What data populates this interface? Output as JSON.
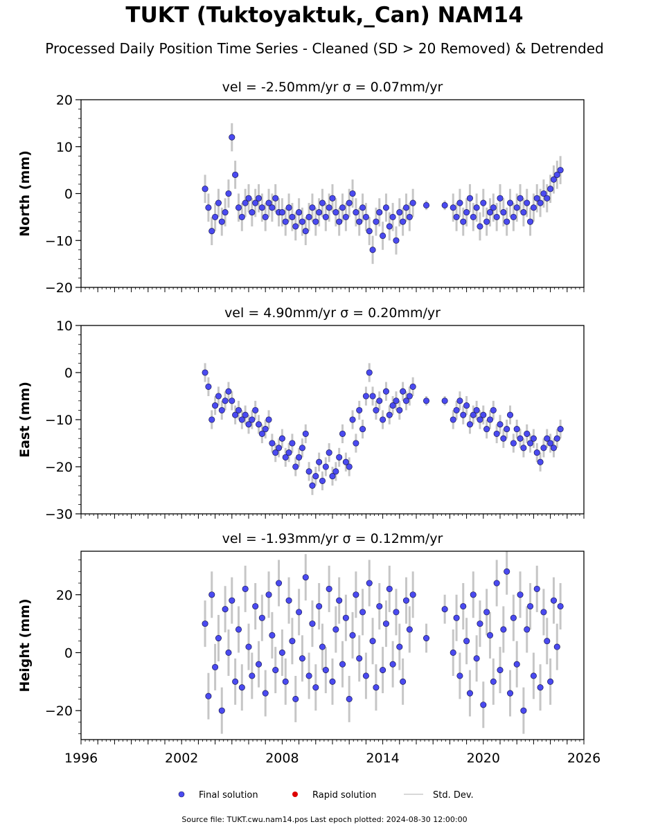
{
  "header": {
    "title": "TUKT (Tuktoyaktuk,_Can) NAM14",
    "subtitle": "Processed Daily Position Time Series - Cleaned (SD > 20 Removed) & Detrended"
  },
  "legend": {
    "final": "Final solution",
    "rapid": "Rapid solution",
    "stddev": "Std. Dev."
  },
  "footer": {
    "text": "Source file: TUKT.cwu.nam14.pos  Last epoch plotted: 2024-08-30 12:00:00"
  },
  "colors": {
    "final": "#4a4af0",
    "final_edge": "#1a1a55",
    "rapid": "#dd0000",
    "stddev": "#808080"
  },
  "chart_data": [
    {
      "type": "scatter",
      "title": "vel = -2.50mm/yr   σ = 0.07mm/yr",
      "ylabel": "North (mm)",
      "xlim": [
        1996,
        2026
      ],
      "ylim": [
        -20,
        20
      ],
      "yticks": [
        -20,
        -10,
        0,
        10,
        20
      ],
      "xticks": [
        1996,
        2002,
        2008,
        2014,
        2020,
        2026
      ],
      "show_xticklabels": false,
      "series": [
        {
          "name": "Final solution",
          "x": [
            2003.4,
            2003.6,
            2003.8,
            2004.0,
            2004.2,
            2004.4,
            2004.6,
            2004.8,
            2005.0,
            2005.2,
            2005.4,
            2005.6,
            2005.8,
            2006.0,
            2006.2,
            2006.4,
            2006.6,
            2006.8,
            2007.0,
            2007.2,
            2007.4,
            2007.6,
            2007.8,
            2008.0,
            2008.2,
            2008.4,
            2008.6,
            2008.8,
            2009.0,
            2009.2,
            2009.4,
            2009.6,
            2009.8,
            2010.0,
            2010.2,
            2010.4,
            2010.6,
            2010.8,
            2011.0,
            2011.2,
            2011.4,
            2011.6,
            2011.8,
            2012.0,
            2012.2,
            2012.4,
            2012.6,
            2012.8,
            2013.0,
            2013.2,
            2013.4,
            2013.6,
            2013.8,
            2014.0,
            2014.2,
            2014.4,
            2014.6,
            2014.8,
            2015.0,
            2015.2,
            2015.4,
            2015.6,
            2015.8,
            2016.6,
            2017.7,
            2018.2,
            2018.4,
            2018.6,
            2018.8,
            2019.0,
            2019.2,
            2019.4,
            2019.6,
            2019.8,
            2020.0,
            2020.2,
            2020.4,
            2020.6,
            2020.8,
            2021.0,
            2021.2,
            2021.4,
            2021.6,
            2021.8,
            2022.0,
            2022.2,
            2022.4,
            2022.6,
            2022.8,
            2023.0,
            2023.2,
            2023.4,
            2023.6,
            2023.8,
            2024.0,
            2024.2,
            2024.4,
            2024.6
          ],
          "y": [
            1,
            -3,
            -8,
            -5,
            -2,
            -6,
            -4,
            0,
            12,
            4,
            -3,
            -5,
            -2,
            -1,
            -4,
            -2,
            -1,
            -3,
            -5,
            -2,
            -3,
            -1,
            -4,
            -4,
            -6,
            -3,
            -5,
            -7,
            -4,
            -6,
            -8,
            -5,
            -3,
            -6,
            -4,
            -2,
            -5,
            -3,
            -1,
            -4,
            -6,
            -3,
            -5,
            -2,
            0,
            -4,
            -6,
            -3,
            -5,
            -8,
            -12,
            -6,
            -4,
            -9,
            -3,
            -7,
            -5,
            -10,
            -4,
            -6,
            -3,
            -5,
            -2,
            -2.5,
            -2.5,
            -3,
            -5,
            -2,
            -6,
            -4,
            -1,
            -5,
            -3,
            -7,
            -2,
            -6,
            -4,
            -3,
            -5,
            -1,
            -4,
            -6,
            -2,
            -5,
            -3,
            -1,
            -4,
            -2,
            -6,
            -3,
            -1,
            -2,
            0,
            -1,
            1,
            3,
            4,
            5
          ],
          "yerr": [
            3,
            3,
            3,
            3,
            3,
            3,
            3,
            3,
            3,
            3,
            3,
            3,
            3,
            3,
            3,
            3,
            3,
            3,
            3,
            3,
            3,
            3,
            3,
            3,
            3,
            3,
            3,
            3,
            3,
            3,
            3,
            3,
            3,
            3,
            3,
            3,
            3,
            3,
            3,
            3,
            3,
            3,
            3,
            3,
            3,
            3,
            3,
            3,
            3,
            3,
            3,
            3,
            3,
            3,
            3,
            3,
            3,
            3,
            3,
            3,
            3,
            3,
            3,
            1,
            1,
            3,
            3,
            3,
            3,
            3,
            3,
            3,
            3,
            3,
            3,
            3,
            3,
            3,
            3,
            3,
            3,
            3,
            3,
            3,
            3,
            3,
            3,
            3,
            3,
            3,
            3,
            3,
            3,
            3,
            3,
            3,
            3,
            3
          ]
        }
      ]
    },
    {
      "type": "scatter",
      "title": "vel = 4.90mm/yr   σ = 0.20mm/yr",
      "ylabel": "East (mm)",
      "xlim": [
        1996,
        2026
      ],
      "ylim": [
        -30,
        10
      ],
      "yticks": [
        -30,
        -20,
        -10,
        0,
        10
      ],
      "xticks": [
        1996,
        2002,
        2008,
        2014,
        2020,
        2026
      ],
      "show_xticklabels": false,
      "series": [
        {
          "name": "Final solution",
          "x": [
            2003.4,
            2003.6,
            2003.8,
            2004.0,
            2004.2,
            2004.4,
            2004.6,
            2004.8,
            2005.0,
            2005.2,
            2005.4,
            2005.6,
            2005.8,
            2006.0,
            2006.2,
            2006.4,
            2006.6,
            2006.8,
            2007.0,
            2007.2,
            2007.4,
            2007.6,
            2007.8,
            2008.0,
            2008.2,
            2008.4,
            2008.6,
            2008.8,
            2009.0,
            2009.2,
            2009.4,
            2009.6,
            2009.8,
            2010.0,
            2010.2,
            2010.4,
            2010.6,
            2010.8,
            2011.0,
            2011.2,
            2011.4,
            2011.6,
            2011.8,
            2012.0,
            2012.2,
            2012.4,
            2012.6,
            2012.8,
            2013.0,
            2013.2,
            2013.4,
            2013.6,
            2013.8,
            2014.0,
            2014.2,
            2014.4,
            2014.6,
            2014.8,
            2015.0,
            2015.2,
            2015.4,
            2015.6,
            2015.8,
            2016.6,
            2017.7,
            2018.2,
            2018.4,
            2018.6,
            2018.8,
            2019.0,
            2019.2,
            2019.4,
            2019.6,
            2019.8,
            2020.0,
            2020.2,
            2020.4,
            2020.6,
            2020.8,
            2021.0,
            2021.2,
            2021.4,
            2021.6,
            2021.8,
            2022.0,
            2022.2,
            2022.4,
            2022.6,
            2022.8,
            2023.0,
            2023.2,
            2023.4,
            2023.6,
            2023.8,
            2024.0,
            2024.2,
            2024.4,
            2024.6
          ],
          "y": [
            0,
            -3,
            -10,
            -7,
            -5,
            -8,
            -6,
            -4,
            -6,
            -9,
            -8,
            -10,
            -9,
            -11,
            -10,
            -8,
            -11,
            -13,
            -12,
            -10,
            -15,
            -17,
            -16,
            -14,
            -18,
            -17,
            -15,
            -20,
            -18,
            -16,
            -13,
            -21,
            -24,
            -22,
            -19,
            -23,
            -20,
            -17,
            -22,
            -21,
            -18,
            -13,
            -19,
            -20,
            -10,
            -15,
            -8,
            -12,
            -5,
            0,
            -5,
            -8,
            -6,
            -10,
            -4,
            -9,
            -7,
            -6,
            -8,
            -4,
            -6,
            -5,
            -3,
            -6,
            -6,
            -10,
            -8,
            -6,
            -9,
            -7,
            -11,
            -9,
            -8,
            -10,
            -9,
            -12,
            -10,
            -8,
            -13,
            -11,
            -14,
            -12,
            -9,
            -15,
            -12,
            -14,
            -16,
            -13,
            -15,
            -14,
            -17,
            -19,
            -16,
            -14,
            -15,
            -16,
            -14,
            -12
          ],
          "yerr": [
            2,
            2,
            2,
            2,
            2,
            2,
            2,
            2,
            2,
            2,
            2,
            2,
            2,
            2,
            2,
            2,
            2,
            2,
            2,
            2,
            2,
            2,
            2,
            2,
            2,
            2,
            2,
            2,
            2,
            2,
            2,
            2,
            2,
            2,
            2,
            2,
            2,
            2,
            2,
            2,
            2,
            2,
            2,
            2,
            2,
            2,
            2,
            2,
            2,
            2,
            2,
            2,
            2,
            2,
            2,
            2,
            2,
            2,
            2,
            2,
            2,
            2,
            2,
            1,
            1,
            2,
            2,
            2,
            2,
            2,
            2,
            2,
            2,
            2,
            2,
            2,
            2,
            2,
            2,
            2,
            2,
            2,
            2,
            2,
            2,
            2,
            2,
            2,
            2,
            2,
            2,
            2,
            2,
            2,
            2,
            2,
            2,
            2
          ]
        }
      ]
    },
    {
      "type": "scatter",
      "title": "vel = -1.93mm/yr   σ = 0.12mm/yr",
      "ylabel": "Height (mm)",
      "xlim": [
        1996,
        2026
      ],
      "ylim": [
        -30,
        35
      ],
      "yticks": [
        -20,
        0,
        20
      ],
      "xticks": [
        1996,
        2002,
        2008,
        2014,
        2020,
        2026
      ],
      "show_xticklabels": true,
      "series": [
        {
          "name": "Final solution",
          "x": [
            2003.4,
            2003.6,
            2003.8,
            2004.0,
            2004.2,
            2004.4,
            2004.6,
            2004.8,
            2005.0,
            2005.2,
            2005.4,
            2005.6,
            2005.8,
            2006.0,
            2006.2,
            2006.4,
            2006.6,
            2006.8,
            2007.0,
            2007.2,
            2007.4,
            2007.6,
            2007.8,
            2008.0,
            2008.2,
            2008.4,
            2008.6,
            2008.8,
            2009.0,
            2009.2,
            2009.4,
            2009.6,
            2009.8,
            2010.0,
            2010.2,
            2010.4,
            2010.6,
            2010.8,
            2011.0,
            2011.2,
            2011.4,
            2011.6,
            2011.8,
            2012.0,
            2012.2,
            2012.4,
            2012.6,
            2012.8,
            2013.0,
            2013.2,
            2013.4,
            2013.6,
            2013.8,
            2014.0,
            2014.2,
            2014.4,
            2014.6,
            2014.8,
            2015.0,
            2015.2,
            2015.4,
            2015.6,
            2015.8,
            2016.6,
            2017.7,
            2018.2,
            2018.4,
            2018.6,
            2018.8,
            2019.0,
            2019.2,
            2019.4,
            2019.6,
            2019.8,
            2020.0,
            2020.2,
            2020.4,
            2020.6,
            2020.8,
            2021.0,
            2021.2,
            2021.4,
            2021.6,
            2021.8,
            2022.0,
            2022.2,
            2022.4,
            2022.6,
            2022.8,
            2023.0,
            2023.2,
            2023.4,
            2023.6,
            2023.8,
            2024.0,
            2024.2,
            2024.4,
            2024.6
          ],
          "y": [
            10,
            -15,
            20,
            -5,
            5,
            -20,
            15,
            0,
            18,
            -10,
            8,
            -12,
            22,
            2,
            -8,
            16,
            -4,
            12,
            -14,
            20,
            6,
            -6,
            24,
            0,
            -10,
            18,
            4,
            -16,
            14,
            -2,
            26,
            -8,
            10,
            -12,
            16,
            2,
            -6,
            22,
            -10,
            8,
            18,
            -4,
            12,
            -16,
            6,
            20,
            -2,
            14,
            -8,
            24,
            4,
            -12,
            16,
            -6,
            10,
            22,
            -4,
            14,
            2,
            -10,
            18,
            8,
            20,
            5,
            15,
            0,
            12,
            -8,
            16,
            4,
            -14,
            20,
            -2,
            10,
            -18,
            14,
            6,
            -10,
            24,
            -6,
            8,
            28,
            -14,
            12,
            -4,
            20,
            -20,
            8,
            16,
            -8,
            22,
            -12,
            14,
            4,
            -10,
            18,
            2,
            16
          ],
          "yerr": [
            8,
            8,
            8,
            8,
            8,
            8,
            8,
            8,
            8,
            8,
            8,
            8,
            8,
            8,
            8,
            8,
            8,
            8,
            8,
            8,
            8,
            8,
            8,
            8,
            8,
            8,
            8,
            8,
            8,
            8,
            8,
            8,
            8,
            8,
            8,
            8,
            8,
            8,
            8,
            8,
            8,
            8,
            8,
            8,
            8,
            8,
            8,
            8,
            8,
            8,
            8,
            8,
            8,
            8,
            8,
            8,
            8,
            8,
            8,
            8,
            8,
            8,
            8,
            5,
            5,
            8,
            8,
            8,
            8,
            8,
            8,
            8,
            8,
            8,
            8,
            8,
            8,
            8,
            8,
            8,
            8,
            8,
            8,
            8,
            8,
            8,
            8,
            8,
            8,
            8,
            8,
            8,
            8,
            8,
            8,
            8,
            8,
            8
          ]
        }
      ]
    }
  ]
}
